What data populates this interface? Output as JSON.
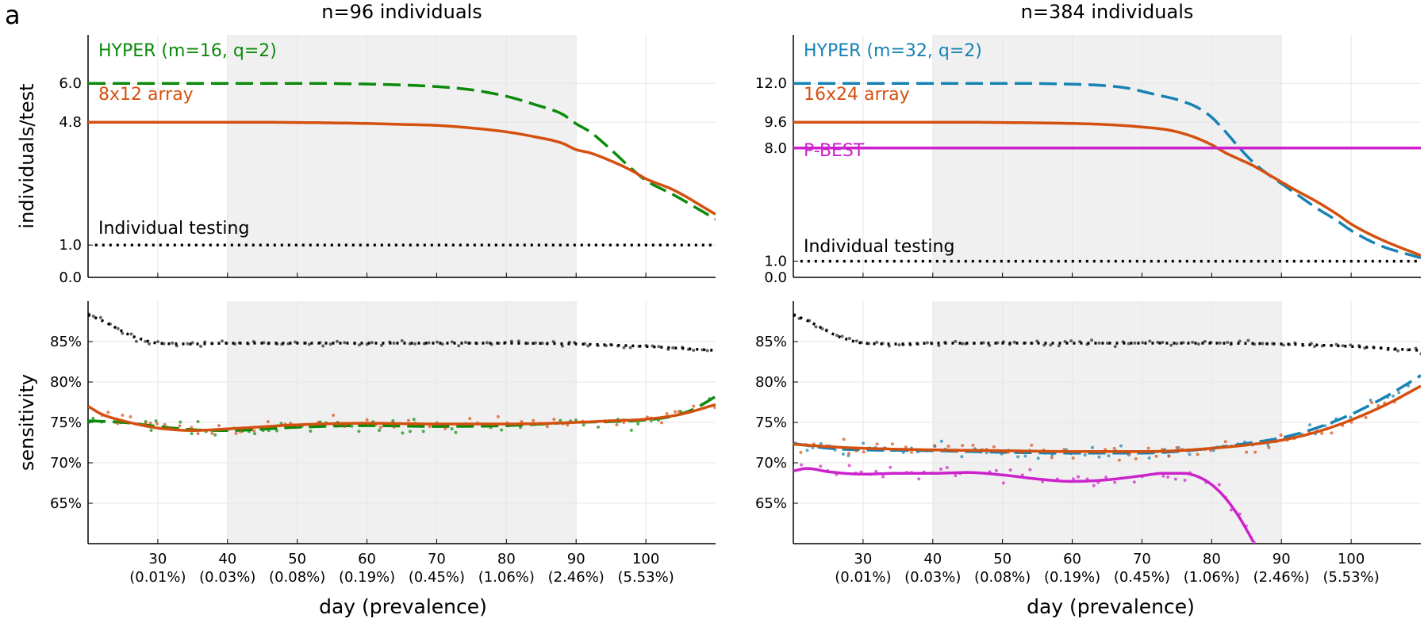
{
  "figure": {
    "panel_letter": "a",
    "xlabel": "day (prevalence)"
  },
  "colors": {
    "hyper16": "#0b8a0b",
    "hyper32": "#1683b4",
    "array": "#d4500f",
    "pbest": "#cc22cc",
    "individual": "#000000",
    "shade": "#f0f0f0",
    "grid": "#e6e6e6",
    "axis": "#000000"
  },
  "chart_data": [
    {
      "type": "line",
      "panel": "top-left",
      "title": "n=96 individuals",
      "ylabel": "individuals/test",
      "xlim": [
        20,
        110
      ],
      "ylim": [
        0,
        7.5
      ],
      "grid": true,
      "shaded_x_range": [
        40,
        90
      ],
      "yticks": [
        0,
        1,
        4.8,
        6
      ],
      "ytick_labels": [
        "0.0",
        "1.0",
        "4.8",
        "6.0"
      ],
      "xticks": [
        30,
        40,
        50,
        60,
        70,
        80,
        90,
        100
      ],
      "series": [
        {
          "name": "HYPER (m=16, q=2)",
          "color_key": "hyper16",
          "dash": "long",
          "x": [
            20,
            30,
            40,
            50,
            60,
            65,
            70,
            75,
            80,
            84,
            88,
            90,
            92,
            95,
            98,
            100,
            104,
            110
          ],
          "y": [
            6.0,
            6.0,
            6.0,
            6.0,
            5.98,
            5.95,
            5.9,
            5.8,
            5.6,
            5.35,
            5.05,
            4.75,
            4.5,
            3.95,
            3.35,
            3.0,
            2.55,
            1.8
          ]
        },
        {
          "name": "8x12 array",
          "color_key": "array",
          "dash": "solid",
          "x": [
            20,
            30,
            40,
            50,
            60,
            65,
            70,
            75,
            80,
            84,
            88,
            90,
            92,
            95,
            98,
            100,
            104,
            110
          ],
          "y": [
            4.8,
            4.8,
            4.8,
            4.79,
            4.76,
            4.73,
            4.7,
            4.62,
            4.5,
            4.35,
            4.15,
            3.95,
            3.85,
            3.6,
            3.3,
            3.05,
            2.7,
            1.95
          ]
        },
        {
          "name": "Individual testing",
          "color_key": "individual",
          "dash": "dot",
          "x": [
            21,
            110
          ],
          "y": [
            1.0,
            1.0
          ]
        }
      ]
    },
    {
      "type": "line",
      "panel": "top-right",
      "title": "n=384 individuals",
      "ylabel": "",
      "xlim": [
        20,
        110
      ],
      "ylim": [
        0,
        15
      ],
      "grid": true,
      "shaded_x_range": [
        40,
        90
      ],
      "yticks": [
        0,
        1,
        8,
        9.6,
        12
      ],
      "ytick_labels": [
        "0.0",
        "1.0",
        "8.0",
        "9.6",
        "12.0"
      ],
      "xticks": [
        30,
        40,
        50,
        60,
        70,
        80,
        90,
        100
      ],
      "series": [
        {
          "name": "HYPER (m=32, q=2)",
          "color_key": "hyper32",
          "dash": "long",
          "x": [
            20,
            30,
            40,
            50,
            60,
            65,
            68,
            72,
            75,
            78,
            80,
            82,
            84,
            86,
            88,
            90,
            92,
            95,
            98,
            100,
            104,
            110
          ],
          "y": [
            12.0,
            12.0,
            12.0,
            12.0,
            11.95,
            11.85,
            11.7,
            11.3,
            11.0,
            10.5,
            9.9,
            9.0,
            8.0,
            7.1,
            6.4,
            5.8,
            5.2,
            4.3,
            3.5,
            2.9,
            2.0,
            1.2
          ]
        },
        {
          "name": "16x24 array",
          "color_key": "array",
          "dash": "solid",
          "x": [
            20,
            30,
            40,
            50,
            60,
            65,
            70,
            74,
            77,
            80,
            82,
            84,
            86,
            88,
            90,
            92,
            95,
            98,
            100,
            104,
            110
          ],
          "y": [
            9.6,
            9.6,
            9.6,
            9.58,
            9.52,
            9.45,
            9.3,
            9.1,
            8.75,
            8.2,
            7.7,
            7.3,
            6.9,
            6.4,
            5.9,
            5.4,
            4.7,
            3.9,
            3.3,
            2.4,
            1.35
          ]
        },
        {
          "name": "P-BEST",
          "color_key": "pbest",
          "dash": "solid",
          "x": [
            20,
            110
          ],
          "y": [
            8.0,
            8.0
          ]
        },
        {
          "name": "Individual testing",
          "color_key": "individual",
          "dash": "dot",
          "x": [
            21,
            110
          ],
          "y": [
            1.0,
            1.0
          ]
        }
      ]
    },
    {
      "type": "scatter",
      "panel": "bottom-left",
      "title": "",
      "ylabel": "sensitivity",
      "xlim": [
        20,
        110
      ],
      "ylim": [
        60,
        90
      ],
      "grid": true,
      "shaded_x_range": [
        40,
        90
      ],
      "yticks": [
        65,
        70,
        75,
        80,
        85
      ],
      "ytick_labels": [
        "65%",
        "70%",
        "75%",
        "80%",
        "85%"
      ],
      "xticks": [
        30,
        40,
        50,
        60,
        70,
        80,
        90,
        100
      ],
      "xtick_labels": [
        "30",
        "40",
        "50",
        "60",
        "70",
        "80",
        "90",
        "100"
      ],
      "xtick_sublabels": [
        "(0.01%)",
        "(0.03%)",
        "(0.08%)",
        "(0.19%)",
        "(0.45%)",
        "(1.06%)",
        "(2.46%)",
        "(5.53%)"
      ],
      "series": [
        {
          "name": "individual",
          "color_key": "individual",
          "dash": "dot",
          "x": [
            20,
            22,
            24,
            26,
            28,
            30,
            35,
            40,
            50,
            60,
            70,
            80,
            90,
            100,
            110
          ],
          "y": [
            88.3,
            87.6,
            86.7,
            85.8,
            85.2,
            84.8,
            84.7,
            84.8,
            84.8,
            84.8,
            84.8,
            84.8,
            84.7,
            84.4,
            83.9
          ]
        },
        {
          "name": "hyper16",
          "color_key": "hyper16",
          "dash": "long",
          "x": [
            20,
            25,
            30,
            35,
            40,
            50,
            60,
            70,
            80,
            90,
            95,
            100,
            104,
            107,
            110
          ],
          "y": [
            75.2,
            75.0,
            74.5,
            74.1,
            74.0,
            74.4,
            74.6,
            74.5,
            74.6,
            75.0,
            75.1,
            75.3,
            75.8,
            76.7,
            78.2
          ]
        },
        {
          "name": "array",
          "color_key": "array",
          "dash": "solid",
          "x": [
            20,
            22,
            25,
            28,
            30,
            35,
            40,
            50,
            60,
            70,
            80,
            90,
            95,
            100,
            105,
            110
          ],
          "y": [
            77.0,
            76.0,
            75.2,
            74.6,
            74.3,
            74.0,
            74.2,
            74.7,
            74.9,
            74.8,
            74.8,
            75.0,
            75.2,
            75.4,
            76.0,
            77.2
          ]
        }
      ]
    },
    {
      "type": "scatter",
      "panel": "bottom-right",
      "title": "",
      "ylabel": "",
      "xlim": [
        20,
        110
      ],
      "ylim": [
        60,
        90
      ],
      "grid": true,
      "shaded_x_range": [
        40,
        90
      ],
      "yticks": [
        65,
        70,
        75,
        80,
        85
      ],
      "ytick_labels": [
        "65%",
        "70%",
        "75%",
        "80%",
        "85%"
      ],
      "xticks": [
        30,
        40,
        50,
        60,
        70,
        80,
        90,
        100
      ],
      "xtick_labels": [
        "30",
        "40",
        "50",
        "60",
        "70",
        "80",
        "90",
        "100"
      ],
      "xtick_sublabels": [
        "(0.01%)",
        "(0.03%)",
        "(0.08%)",
        "(0.19%)",
        "(0.45%)",
        "(1.06%)",
        "(2.46%)",
        "(5.53%)"
      ],
      "series": [
        {
          "name": "individual",
          "color_key": "individual",
          "dash": "dot",
          "x": [
            20,
            22,
            24,
            26,
            28,
            30,
            35,
            40,
            50,
            60,
            70,
            80,
            90,
            100,
            110
          ],
          "y": [
            88.3,
            87.6,
            86.7,
            85.8,
            85.2,
            84.8,
            84.7,
            84.8,
            84.8,
            84.8,
            84.8,
            84.8,
            84.7,
            84.4,
            83.9
          ]
        },
        {
          "name": "hyper32",
          "color_key": "hyper32",
          "dash": "long",
          "x": [
            20,
            25,
            30,
            40,
            50,
            60,
            70,
            75,
            80,
            85,
            90,
            95,
            100,
            105,
            110
          ],
          "y": [
            72.4,
            71.8,
            71.6,
            71.5,
            71.3,
            71.2,
            71.2,
            71.4,
            71.8,
            72.4,
            73.1,
            74.3,
            76.0,
            78.2,
            80.8
          ]
        },
        {
          "name": "array",
          "color_key": "array",
          "dash": "solid",
          "x": [
            20,
            25,
            30,
            40,
            50,
            60,
            70,
            75,
            80,
            85,
            90,
            95,
            100,
            105,
            110
          ],
          "y": [
            72.3,
            72.0,
            71.8,
            71.6,
            71.5,
            71.4,
            71.4,
            71.5,
            71.8,
            72.2,
            72.8,
            73.8,
            75.3,
            77.2,
            79.5
          ]
        },
        {
          "name": "pbest",
          "color_key": "pbest",
          "dash": "solid",
          "x": [
            20,
            22,
            25,
            30,
            35,
            40,
            45,
            50,
            55,
            60,
            65,
            70,
            73,
            76,
            78,
            80,
            82,
            84,
            86
          ],
          "y": [
            69.0,
            69.3,
            68.9,
            68.6,
            68.7,
            68.7,
            68.8,
            68.5,
            68.0,
            67.7,
            67.9,
            68.4,
            68.7,
            68.7,
            68.3,
            67.3,
            65.6,
            63.2,
            60.2
          ]
        }
      ]
    }
  ]
}
